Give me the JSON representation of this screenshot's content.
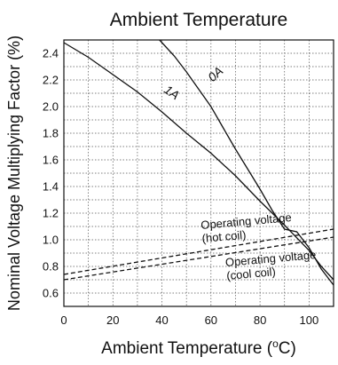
{
  "chart_data": {
    "type": "line",
    "title": "Ambient Temperature",
    "xlabel_main": "Ambient Temperature (",
    "xlabel_sup": "o",
    "xlabel_tail": "C)",
    "ylabel": "Nominal Voltage Multiplying Factor (%)",
    "xlim": [
      0,
      110
    ],
    "ylim": [
      0.5,
      2.5
    ],
    "x_major_ticks": [
      0,
      20,
      40,
      60,
      80,
      100
    ],
    "y_major_ticks": [
      0.6,
      0.8,
      1.0,
      1.2,
      1.4,
      1.6,
      1.8,
      2.0,
      2.2,
      2.4
    ],
    "x_tick_labels": [
      "0",
      "20",
      "40",
      "60",
      "80",
      "100"
    ],
    "y_tick_labels": [
      "0.6",
      "0.8",
      "1.0",
      "1.2",
      "1.4",
      "1.6",
      "1.8",
      "2.0",
      "2.2",
      "2.4"
    ],
    "grid": "dotted, every 10 °C and 0.1",
    "series": [
      {
        "name": "0A",
        "style": "solid",
        "label_at": [
          63,
          2.22
        ],
        "label_rotate": -42,
        "points": [
          [
            39,
            2.5
          ],
          [
            45,
            2.38
          ],
          [
            50,
            2.26
          ],
          [
            55,
            2.13
          ],
          [
            60,
            2.0
          ],
          [
            65,
            1.84
          ],
          [
            70,
            1.68
          ],
          [
            75,
            1.53
          ],
          [
            80,
            1.38
          ],
          [
            85,
            1.22
          ],
          [
            90,
            1.08
          ],
          [
            95,
            1.06
          ],
          [
            100,
            0.94
          ],
          [
            105,
            0.78
          ],
          [
            110,
            0.66
          ]
        ]
      },
      {
        "name": "1A",
        "style": "solid",
        "label_at": [
          43,
          2.08
        ],
        "label_rotate": 35,
        "points": [
          [
            0,
            2.48
          ],
          [
            10,
            2.37
          ],
          [
            20,
            2.24
          ],
          [
            30,
            2.11
          ],
          [
            40,
            1.96
          ],
          [
            50,
            1.8
          ],
          [
            60,
            1.65
          ],
          [
            70,
            1.48
          ],
          [
            80,
            1.29
          ],
          [
            90,
            1.11
          ],
          [
            100,
            0.92
          ],
          [
            105,
            0.8
          ],
          [
            110,
            0.7
          ]
        ]
      },
      {
        "name": "Operating voltage\n(hot coil)",
        "style": "dashed",
        "points": [
          [
            0,
            0.74
          ],
          [
            110,
            1.08
          ]
        ]
      },
      {
        "name": "Operating voltage\n(cool coil)",
        "style": "dashed",
        "points": [
          [
            0,
            0.7
          ],
          [
            110,
            1.02
          ]
        ]
      }
    ],
    "annotations": [
      {
        "lines": [
          "Operating voltage",
          "(hot coil)"
        ],
        "at": [
          56,
          1.08
        ],
        "rotate": -5
      },
      {
        "lines": [
          "Operating voltage",
          "(cool coil)"
        ],
        "at": [
          66,
          0.8
        ],
        "rotate": -5
      }
    ],
    "colors": {
      "line": "#111111",
      "grid": "#555555",
      "background": "#ffffff"
    }
  }
}
